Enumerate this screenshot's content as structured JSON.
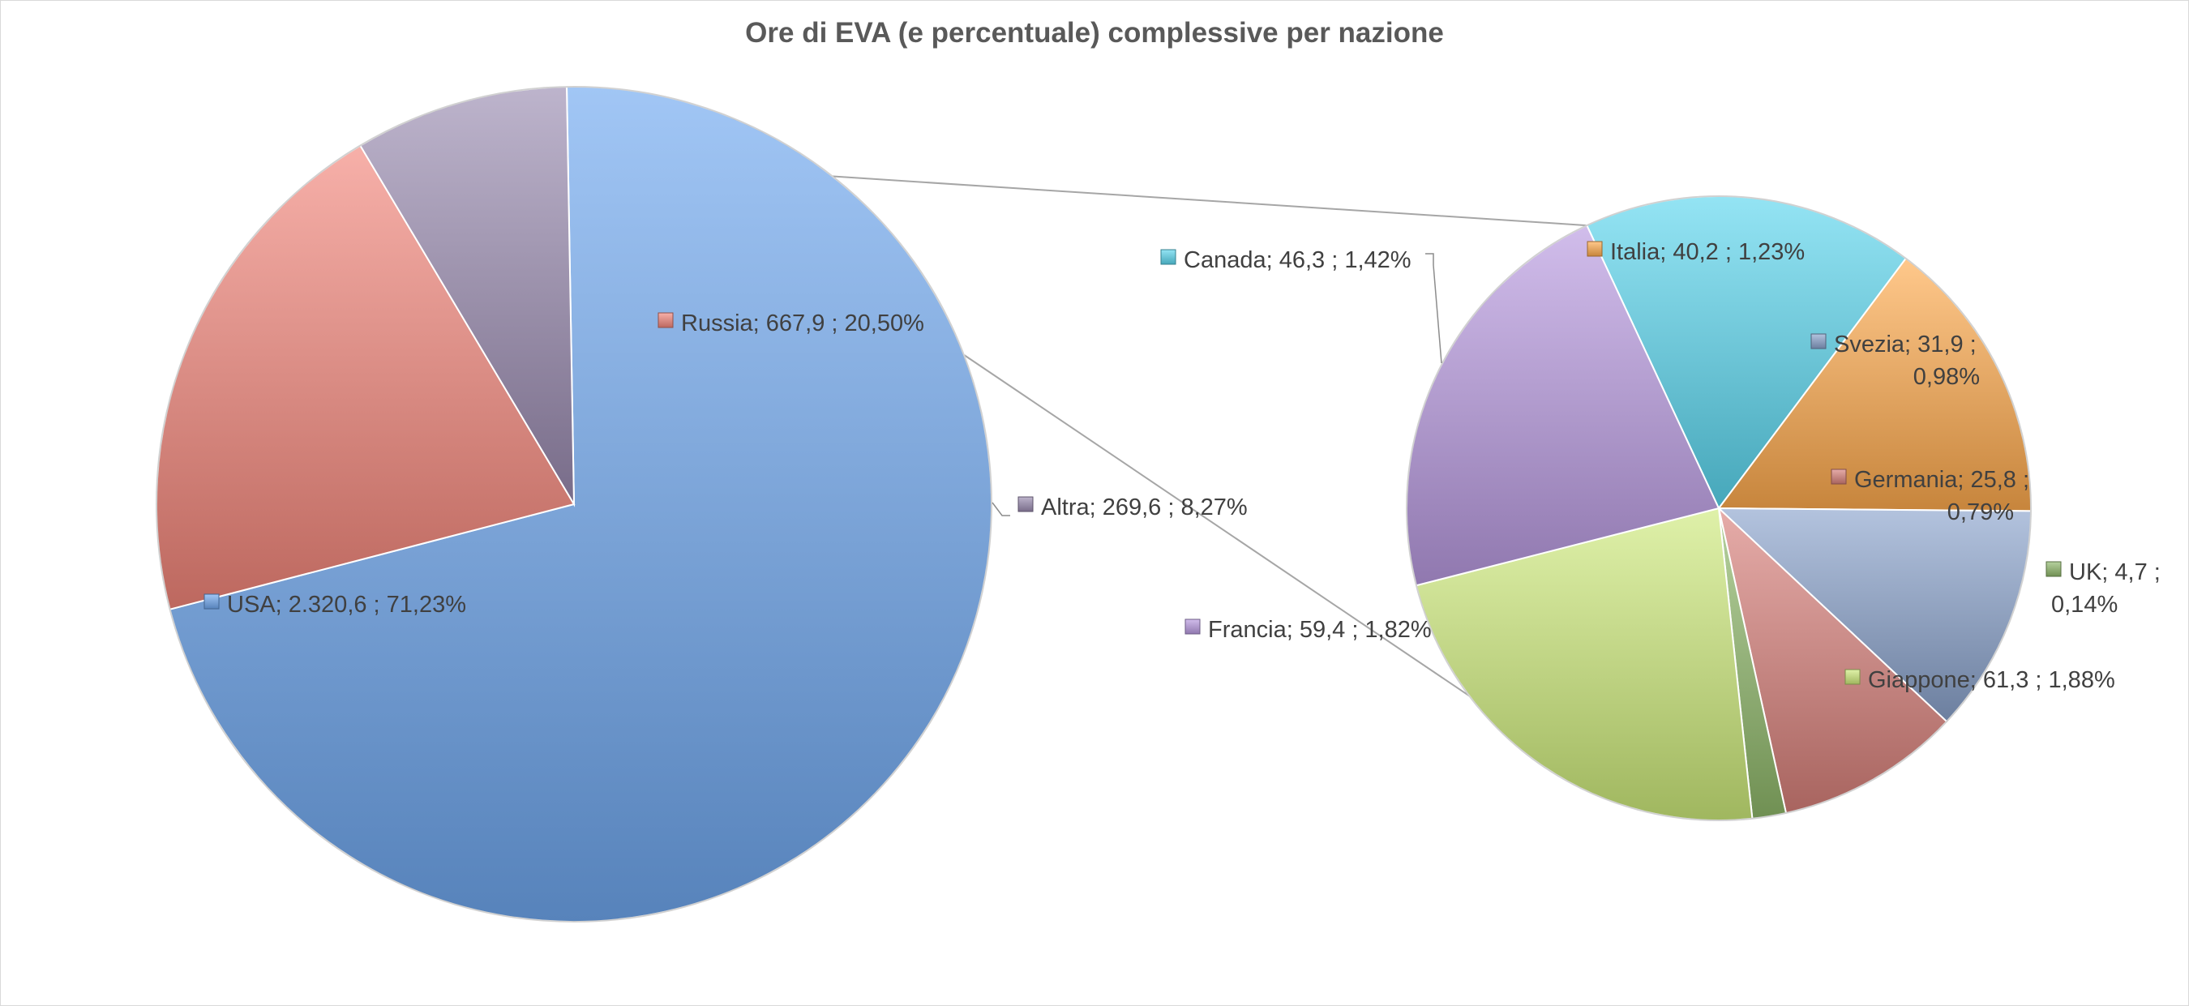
{
  "chart_data": {
    "type": "pie-of-pie",
    "title": "Ore di EVA (e percentuale) complessive per nazione",
    "main_pie": [
      {
        "name": "USA",
        "value": 2320.6,
        "value_label": "2.320,6",
        "percent_label": "71,23%",
        "color": "#6fa8f0"
      },
      {
        "name": "Russia",
        "value": 667.9,
        "value_label": "667,9",
        "percent_label": "20,50%",
        "color": "#f2857a"
      },
      {
        "name": "Altra",
        "value": 269.6,
        "value_label": "269,6",
        "percent_label": "8,27%",
        "color": "#9a8bb0"
      }
    ],
    "secondary_pie": [
      {
        "name": "Canada",
        "value": 46.3,
        "value_label": "46,3",
        "percent_label": "1,42%",
        "color": "#5ad6ee"
      },
      {
        "name": "Italia",
        "value": 40.2,
        "value_label": "40,2",
        "percent_label": "1,23%",
        "color": "#ffab4d"
      },
      {
        "name": "Svezia",
        "value": 31.9,
        "value_label": "31,9",
        "percent_label": "0,98%",
        "color": "#8aa3cc"
      },
      {
        "name": "Germania",
        "value": 25.8,
        "value_label": "25,8",
        "percent_label": "0,79%",
        "color": "#d8807a"
      },
      {
        "name": "UK",
        "value": 4.7,
        "value_label": "4,7",
        "percent_label": "0,14%",
        "color": "#8fb86a"
      },
      {
        "name": "Giappone",
        "value": 61.3,
        "value_label": "61,3",
        "percent_label": "1,88%",
        "color": "#cdea7a"
      },
      {
        "name": "Francia",
        "value": 59.4,
        "value_label": "59,4",
        "percent_label": "1,82%",
        "color": "#b89ae0"
      }
    ]
  }
}
